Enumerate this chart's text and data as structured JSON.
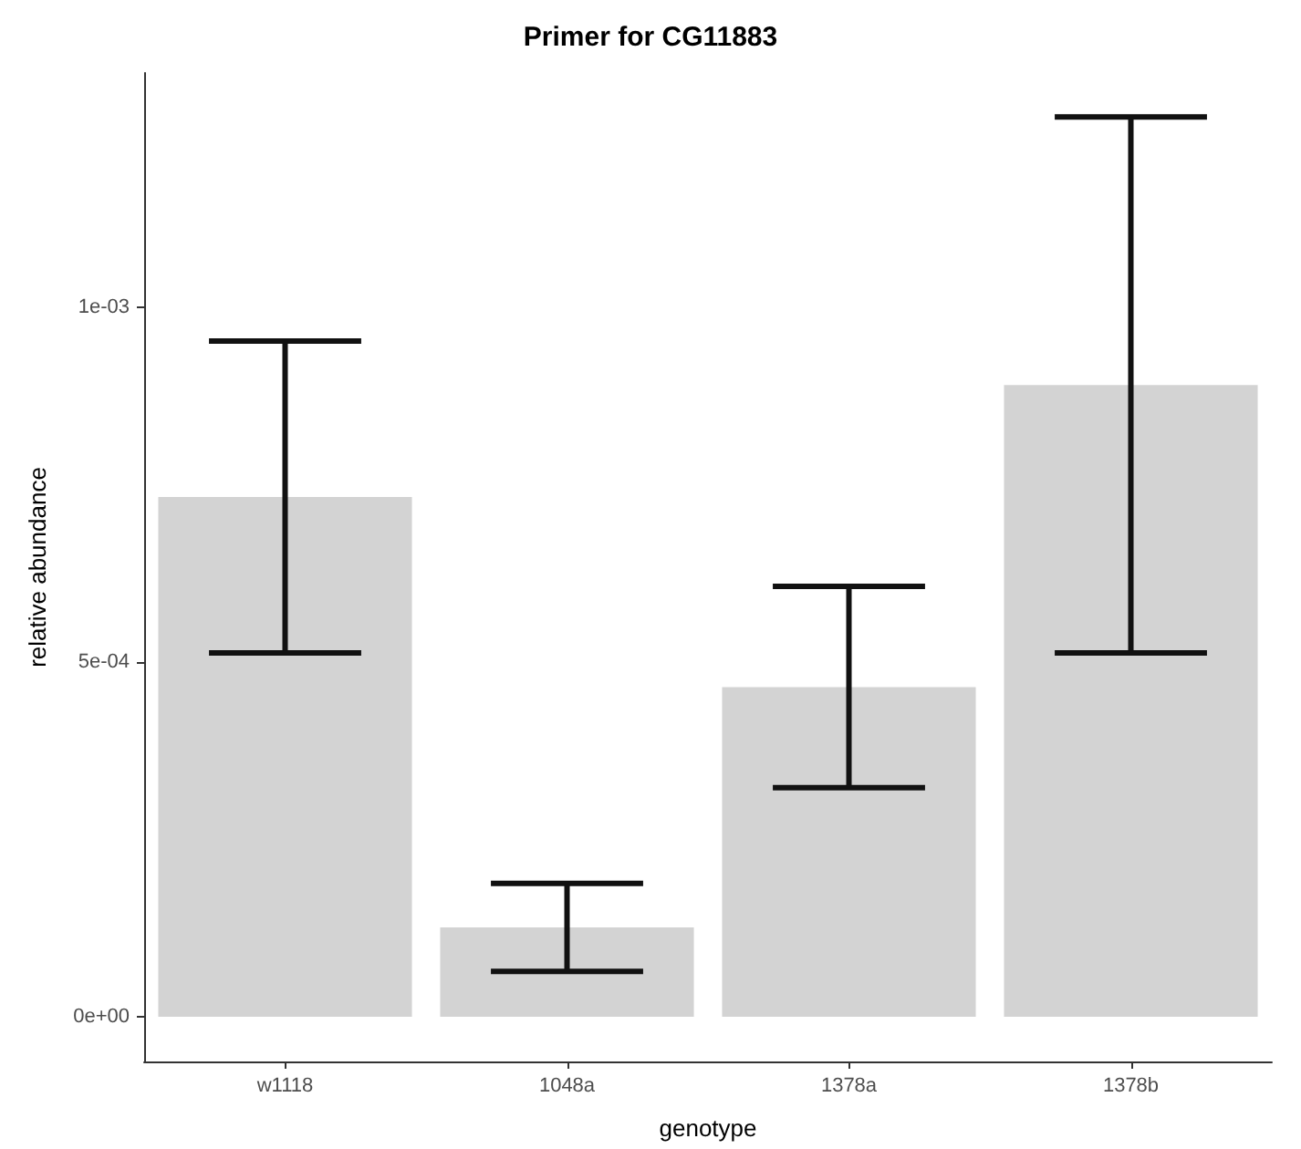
{
  "chart_data": {
    "type": "bar",
    "title": "Primer for CG11883",
    "xlabel": "genotype",
    "ylabel": "relative abundance",
    "categories": [
      "w1118",
      "1048a",
      "1378a",
      "1378b"
    ],
    "values": [
      0.000733,
      0.000126,
      0.000465,
      0.000891
    ],
    "errors": [
      0.00022,
      6.2e-05,
      0.000142,
      0.000378
    ],
    "color": "#d3d3d3",
    "ylim": [
      -6.3e-05,
      0.001331
    ],
    "yticks": [
      {
        "value": 0,
        "label": "0e+00"
      },
      {
        "value": 0.0005,
        "label": "5e-04"
      },
      {
        "value": 0.001,
        "label": "1e-03"
      }
    ],
    "grid": false
  }
}
